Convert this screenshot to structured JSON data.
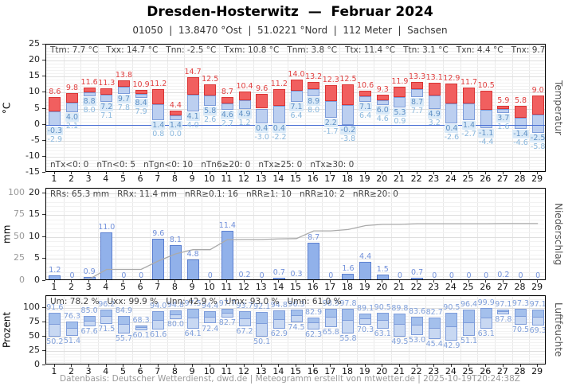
{
  "header": {
    "title": "Dresden-Hosterwitz  —  Februar 2024",
    "subtitle": "01050  |  13.8470 °Ost  |  51.0221 °Nord  |  112 Meter  |  Sachsen"
  },
  "footer": {
    "text": "Datenbasis: Deutscher Wetterdienst, dwd.de | Meteogramm erstellt von mtwetter.de | 2025-10-19T20:24:38Z"
  },
  "days": [
    1,
    2,
    3,
    4,
    5,
    6,
    7,
    8,
    9,
    10,
    11,
    12,
    13,
    14,
    15,
    16,
    17,
    18,
    19,
    20,
    21,
    22,
    23,
    24,
    25,
    26,
    27,
    28,
    29
  ],
  "colors": {
    "temp_red_fill": "#f15f5f",
    "temp_red_edge": "#d93434",
    "temp_red_text": "#e04040",
    "temp_blue_fill": "#bccff0",
    "temp_blue_edge": "#7d9cda",
    "temp_tn_text": "#5e8fc4",
    "temp_tn_box": "#daeaf8",
    "temp_tg_text": "#8ab8de",
    "precip_fill": "#91b1ea",
    "precip_edge": "#5b7fd0",
    "precip_text": "#7190da",
    "hum_fill": "#c8d8f2",
    "hum_fill_top": "#a4c0ec",
    "hum_edge": "#7d9cda",
    "hum_text": "#7f9fda",
    "cum_line": "#aaaaaa",
    "zero_line": "#4a6fd4",
    "grid_minor": "#f2f2f2",
    "grid_major": "#dedede",
    "grid_vertical": "#e9e9e9"
  },
  "chart_data": [
    {
      "id": "temperature",
      "type": "bar",
      "bar_style": "range-split-at-midpoint",
      "axis_right": "Temperatur",
      "ylabel": "°C",
      "ylim": [
        -15,
        25
      ],
      "yticks": [
        25,
        20,
        15,
        10,
        5,
        0,
        -5,
        -10,
        -15
      ],
      "grid": "on",
      "stats_top": "Ttm: 7.7 °C   Txx: 14.7 °C   Tnn: -2.5 °C   Txm: 10.8 °C   Tnm: 3.8 °C   Ttx: 11.4 °C   Ttn: 3.1 °C   Txn: 4.4 °C   Tnx: 9.7 °C   Tgn: -5.8 °C",
      "stats_bottom": "nTx<0: 0   nTn<0: 5   nTgn<0: 10   nTn6≥20: 0   nTx≥25: 0   nTx≥30: 0",
      "categories": [
        1,
        2,
        3,
        4,
        5,
        6,
        7,
        8,
        9,
        10,
        11,
        12,
        13,
        14,
        15,
        16,
        17,
        18,
        19,
        20,
        21,
        22,
        23,
        24,
        25,
        26,
        27,
        28,
        29
      ],
      "series": [
        {
          "name": "Tx",
          "values": [
            8.6,
            9.8,
            11.6,
            11.3,
            13.8,
            10.9,
            11.2,
            4.4,
            14.7,
            12.5,
            8.7,
            10.4,
            9.6,
            11.2,
            14.0,
            13.2,
            12.3,
            12.5,
            10.6,
            9.3,
            11.9,
            13.3,
            13.1,
            12.9,
            11.7,
            10.5,
            5.9,
            5.8,
            9.0
          ]
        },
        {
          "name": "Tn",
          "values": [
            -0.3,
            4.0,
            8.8,
            7.2,
            9.7,
            8.4,
            1.4,
            1.4,
            4.1,
            5.8,
            4.6,
            4.9,
            0.4,
            0.4,
            7.1,
            8.9,
            2.2,
            -0.2,
            7.1,
            6.0,
            5.3,
            8.7,
            4.9,
            0.4,
            1.4,
            -1.1,
            3.7,
            -1.4,
            -2.5
          ]
        },
        {
          "name": "Tg",
          "values": [
            -2.9,
            2.1,
            8.0,
            7.1,
            7.8,
            7.9,
            0.8,
            0.0,
            4.0,
            2.6,
            2.7,
            1.2,
            -3.0,
            -2.2,
            6.4,
            8.0,
            -1.7,
            -3.8,
            6.4,
            4.6,
            0.9,
            7.7,
            3.2,
            -2.6,
            -2.7,
            -4.4,
            1.6,
            -4.6,
            -5.8
          ]
        }
      ]
    },
    {
      "id": "precipitation",
      "type": "bar+line",
      "axis_right": "Niederschlag",
      "ylabel": "mm",
      "ylim": [
        0,
        21
      ],
      "yticks": [
        20,
        15,
        10,
        5,
        0
      ],
      "y2lim": [
        0,
        105
      ],
      "y2ticks": [
        100,
        75,
        50,
        25,
        0
      ],
      "grid": "on",
      "stats_top": "RRs: 65.3 mm   RRx: 11.4 mm   nRR≥0.1: 16   nRR≥1: 10   nRR≥10: 2   nRR≥20: 0",
      "categories": [
        1,
        2,
        3,
        4,
        5,
        6,
        7,
        8,
        9,
        10,
        11,
        12,
        13,
        14,
        15,
        16,
        17,
        18,
        19,
        20,
        21,
        22,
        23,
        24,
        25,
        26,
        27,
        28,
        29
      ],
      "series": [
        {
          "name": "RR",
          "type": "bar",
          "values": [
            1.2,
            0,
            0.9,
            11.0,
            0,
            0,
            9.6,
            8.1,
            4.8,
            0,
            11.4,
            0.2,
            0,
            0.7,
            0.3,
            8.7,
            0,
            1.6,
            4.4,
            1.5,
            0,
            0.7,
            0,
            0,
            0,
            0,
            0.2,
            0,
            0
          ]
        },
        {
          "name": "RR kumuliert",
          "type": "line",
          "axis": "y2",
          "values": [
            1.2,
            1.2,
            2.1,
            13.1,
            13.1,
            13.1,
            22.7,
            30.8,
            35.6,
            35.6,
            47.0,
            47.2,
            47.2,
            47.9,
            48.2,
            56.9,
            56.9,
            58.5,
            62.9,
            64.4,
            64.4,
            65.1,
            65.1,
            65.1,
            65.1,
            65.1,
            65.3,
            65.3,
            65.3
          ]
        }
      ]
    },
    {
      "id": "humidity",
      "type": "bar",
      "bar_style": "range",
      "axis_right": "Luftfeuchte",
      "ylabel": "Prozent",
      "ylim": [
        0,
        120
      ],
      "yticks": [
        100,
        75,
        50,
        25,
        0
      ],
      "grid": "on",
      "stats_top": "Um: 78.2 %   Uxx: 99.9 %   Unn: 42.9 %   Umx: 93.0 %   Umn: 61.0 %",
      "categories": [
        1,
        2,
        3,
        4,
        5,
        6,
        7,
        8,
        9,
        10,
        11,
        12,
        13,
        14,
        15,
        16,
        17,
        18,
        19,
        20,
        21,
        22,
        23,
        24,
        25,
        26,
        27,
        28,
        29
      ],
      "series": [
        {
          "name": "Ux",
          "values": [
            91.6,
            76.3,
            85.0,
            96.2,
            84.9,
            68.3,
            94.0,
            94.8,
            97.5,
            94.4,
            97.7,
            93.7,
            92.1,
            94.8,
            96.3,
            82.9,
            98.5,
            97.8,
            89.1,
            90.5,
            89.8,
            83.6,
            82.7,
            90.5,
            96.4,
            99.9,
            97.1,
            97.3,
            97.1
          ]
        },
        {
          "name": "Un",
          "values": [
            50.2,
            51.4,
            67.6,
            71.5,
            55.7,
            60.1,
            61.6,
            80.0,
            64.1,
            72.4,
            82.7,
            67.2,
            50.1,
            62.9,
            74.5,
            62.3,
            65.8,
            55.8,
            70.3,
            63.1,
            49.5,
            53.0,
            45.4,
            42.9,
            51.1,
            63.1,
            87.8,
            70.5,
            69.3
          ]
        }
      ]
    }
  ]
}
